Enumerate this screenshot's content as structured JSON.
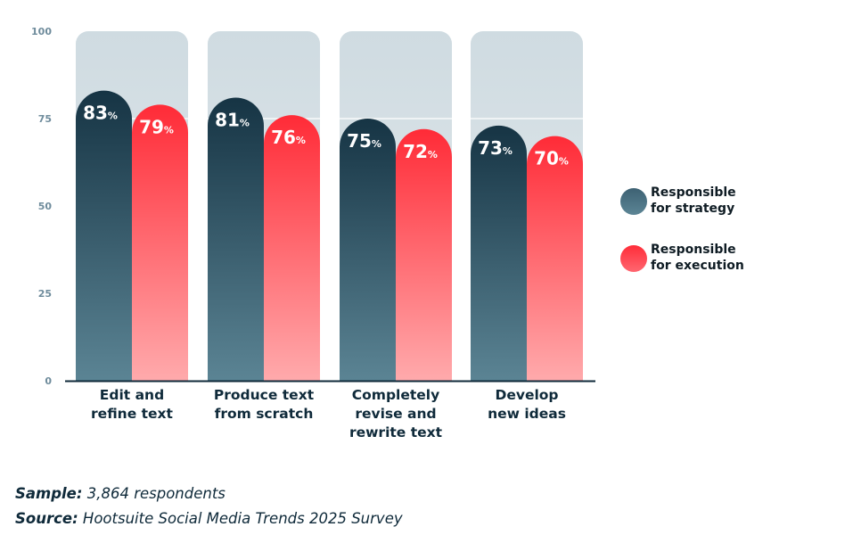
{
  "chart_data": {
    "type": "bar",
    "title": "",
    "xlabel": "",
    "ylabel": "",
    "ylim": [
      0,
      100
    ],
    "yticks": [
      0,
      25,
      50,
      75,
      100
    ],
    "grid": false,
    "legend_position": "right",
    "value_suffix": "%",
    "categories": [
      [
        "Edit and",
        "refine text"
      ],
      [
        "Produce text",
        "from scratch"
      ],
      [
        "Completely",
        "revise and",
        "rewrite text"
      ],
      [
        "Develop",
        "new ideas"
      ]
    ],
    "series": [
      {
        "name": "Responsible for strategy",
        "values": [
          83,
          81,
          75,
          73
        ],
        "color_top": "#173646",
        "color_bottom": "#5a8394"
      },
      {
        "name": "Responsible for execution",
        "values": [
          79,
          76,
          72,
          70
        ],
        "color_top": "#ff2d39",
        "color_bottom": "#ffa9ab"
      }
    ],
    "background_bar_value": 100,
    "background_color": "#d5dee3"
  },
  "legend": {
    "items": [
      {
        "line1": "Responsible",
        "line2": "for strategy",
        "color": "#4a6e80"
      },
      {
        "line1": "Responsible",
        "line2": "for execution",
        "color": "#ff3340"
      }
    ]
  },
  "notes": {
    "sample_label": "Sample:",
    "sample_value": " 3,864 respondents",
    "source_label": "Source:",
    "source_value": " Hootsuite Social Media Trends 2025 Survey"
  }
}
